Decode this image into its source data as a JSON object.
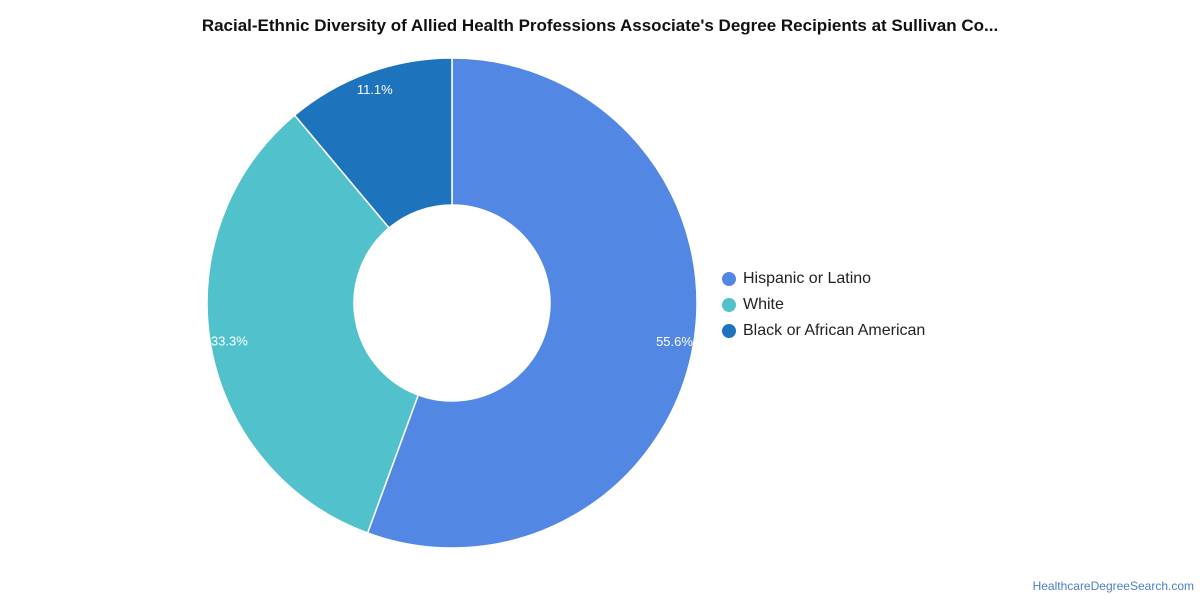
{
  "title": "Racial-Ethnic Diversity of Allied Health Professions Associate's Degree Recipients at Sullivan Co...",
  "source_link": "HealthcareDegreeSearch.com",
  "chart_data": {
    "type": "pie",
    "style": "donut",
    "title": "Racial-Ethnic Diversity of Allied Health Professions Associate's Degree Recipients at Sullivan Co...",
    "categories": [
      "Hispanic or Latino",
      "White",
      "Black or African American"
    ],
    "values": [
      55.6,
      33.3,
      11.1
    ],
    "labels": [
      "55.6%",
      "33.3%",
      "11.1%"
    ],
    "colors": [
      "#5387e4",
      "#51c1cc",
      "#1e73bd"
    ],
    "legend_position": "right"
  }
}
